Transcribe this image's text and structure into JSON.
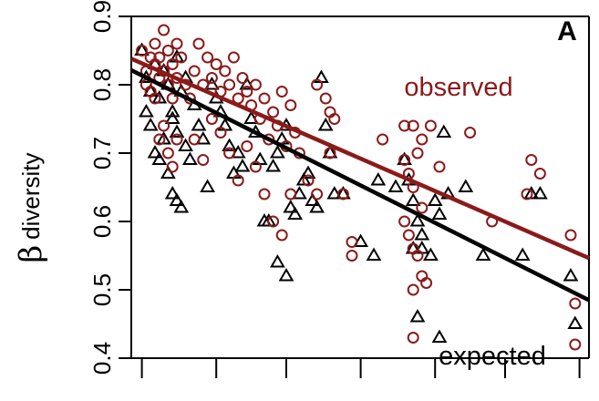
{
  "chart_data": {
    "type": "scatter",
    "title": "",
    "panel_label": "A",
    "ylabel_symbol": "β",
    "ylabel_text": "diversity",
    "xlabel": "",
    "ylim": [
      0.4,
      0.9
    ],
    "xlim": [
      0,
      100
    ],
    "y_ticks": [
      "0.4",
      "0.5",
      "0.6",
      "0.7",
      "0.8",
      "0.9"
    ],
    "y_tick_values": [
      0.4,
      0.5,
      0.6,
      0.7,
      0.8,
      0.9
    ],
    "x_tick_values": [
      2,
      19,
      35,
      52,
      69,
      85,
      102
    ],
    "grid": false,
    "colors": {
      "observed": "#8b1a1a",
      "expected": "#000000"
    },
    "series": [
      {
        "name": "observed",
        "marker": "circle",
        "color": "#8b1a1a",
        "fit_line": {
          "x": [
            0,
            100
          ],
          "y": [
            0.837,
            0.558
          ]
        },
        "points": [
          [
            2,
            0.85
          ],
          [
            3,
            0.82
          ],
          [
            4,
            0.84
          ],
          [
            4,
            0.79
          ],
          [
            5,
            0.83
          ],
          [
            5,
            0.86
          ],
          [
            6,
            0.81
          ],
          [
            6,
            0.84
          ],
          [
            7,
            0.88
          ],
          [
            7,
            0.82
          ],
          [
            8,
            0.85
          ],
          [
            8,
            0.8
          ],
          [
            9,
            0.83
          ],
          [
            9,
            0.78
          ],
          [
            10,
            0.86
          ],
          [
            10,
            0.81
          ],
          [
            11,
            0.84
          ],
          [
            3,
            0.8
          ],
          [
            5,
            0.78
          ],
          [
            6,
            0.72
          ],
          [
            7,
            0.74
          ],
          [
            8,
            0.7
          ],
          [
            9,
            0.68
          ],
          [
            10,
            0.72
          ],
          [
            12,
            0.8
          ],
          [
            13,
            0.78
          ],
          [
            14,
            0.82
          ],
          [
            15,
            0.86
          ],
          [
            16,
            0.8
          ],
          [
            17,
            0.84
          ],
          [
            18,
            0.81
          ],
          [
            19,
            0.83
          ],
          [
            20,
            0.79
          ],
          [
            21,
            0.82
          ],
          [
            22,
            0.8
          ],
          [
            23,
            0.84
          ],
          [
            24,
            0.78
          ],
          [
            25,
            0.81
          ],
          [
            26,
            0.79
          ],
          [
            27,
            0.77
          ],
          [
            28,
            0.8
          ],
          [
            29,
            0.75
          ],
          [
            30,
            0.78
          ],
          [
            31,
            0.72
          ],
          [
            32,
            0.76
          ],
          [
            33,
            0.74
          ],
          [
            34,
            0.79
          ],
          [
            35,
            0.71
          ],
          [
            36,
            0.77
          ],
          [
            37,
            0.73
          ],
          [
            14,
            0.72
          ],
          [
            16,
            0.69
          ],
          [
            18,
            0.75
          ],
          [
            20,
            0.73
          ],
          [
            22,
            0.7
          ],
          [
            24,
            0.66
          ],
          [
            26,
            0.71
          ],
          [
            28,
            0.68
          ],
          [
            30,
            0.64
          ],
          [
            32,
            0.6
          ],
          [
            34,
            0.58
          ],
          [
            36,
            0.64
          ],
          [
            38,
            0.7
          ],
          [
            40,
            0.66
          ],
          [
            42,
            0.64
          ],
          [
            45,
            0.7
          ],
          [
            48,
            0.64
          ],
          [
            50,
            0.57
          ],
          [
            50,
            0.55
          ],
          [
            57,
            0.72
          ],
          [
            62,
            0.74
          ],
          [
            64,
            0.74
          ],
          [
            66,
            0.72
          ],
          [
            62,
            0.69
          ],
          [
            63,
            0.67
          ],
          [
            64,
            0.65
          ],
          [
            65,
            0.7
          ],
          [
            66,
            0.62
          ],
          [
            62,
            0.6
          ],
          [
            63,
            0.58
          ],
          [
            64,
            0.56
          ],
          [
            65,
            0.55
          ],
          [
            64,
            0.5
          ],
          [
            66,
            0.52
          ],
          [
            67,
            0.51
          ],
          [
            64,
            0.43
          ],
          [
            68,
            0.74
          ],
          [
            70,
            0.68
          ],
          [
            77,
            0.73
          ],
          [
            82,
            0.6
          ],
          [
            91,
            0.69
          ],
          [
            93,
            0.67
          ],
          [
            90,
            0.64
          ],
          [
            100,
            0.58
          ],
          [
            101,
            0.48
          ],
          [
            101,
            0.42
          ],
          [
            42,
            0.8
          ],
          [
            44,
            0.78
          ],
          [
            45,
            0.76
          ],
          [
            46,
            0.75
          ]
        ]
      },
      {
        "name": "expected",
        "marker": "triangle",
        "color": "#000000",
        "fit_line": {
          "x": [
            0,
            101
          ],
          "y": [
            0.82,
            0.495
          ]
        },
        "points": [
          [
            2,
            0.85
          ],
          [
            3,
            0.81
          ],
          [
            4,
            0.79
          ],
          [
            5,
            0.83
          ],
          [
            6,
            0.78
          ],
          [
            7,
            0.82
          ],
          [
            8,
            0.8
          ],
          [
            9,
            0.76
          ],
          [
            10,
            0.84
          ],
          [
            11,
            0.79
          ],
          [
            12,
            0.81
          ],
          [
            3,
            0.76
          ],
          [
            4,
            0.74
          ],
          [
            5,
            0.7
          ],
          [
            6,
            0.69
          ],
          [
            7,
            0.72
          ],
          [
            8,
            0.67
          ],
          [
            9,
            0.64
          ],
          [
            10,
            0.63
          ],
          [
            11,
            0.62
          ],
          [
            9,
            0.75
          ],
          [
            10,
            0.73
          ],
          [
            12,
            0.71
          ],
          [
            13,
            0.69
          ],
          [
            14,
            0.77
          ],
          [
            15,
            0.74
          ],
          [
            16,
            0.72
          ],
          [
            17,
            0.65
          ],
          [
            18,
            0.8
          ],
          [
            19,
            0.78
          ],
          [
            20,
            0.76
          ],
          [
            21,
            0.74
          ],
          [
            22,
            0.71
          ],
          [
            23,
            0.67
          ],
          [
            24,
            0.7
          ],
          [
            25,
            0.68
          ],
          [
            26,
            0.8
          ],
          [
            27,
            0.75
          ],
          [
            28,
            0.73
          ],
          [
            29,
            0.69
          ],
          [
            30,
            0.6
          ],
          [
            31,
            0.6
          ],
          [
            32,
            0.68
          ],
          [
            33,
            0.7
          ],
          [
            34,
            0.72
          ],
          [
            35,
            0.74
          ],
          [
            33,
            0.54
          ],
          [
            35,
            0.52
          ],
          [
            36,
            0.62
          ],
          [
            37,
            0.61
          ],
          [
            38,
            0.64
          ],
          [
            39,
            0.66
          ],
          [
            40,
            0.67
          ],
          [
            41,
            0.63
          ],
          [
            42,
            0.62
          ],
          [
            43,
            0.81
          ],
          [
            44,
            0.74
          ],
          [
            45,
            0.7
          ],
          [
            46,
            0.64
          ],
          [
            48,
            0.64
          ],
          [
            52,
            0.57
          ],
          [
            55,
            0.55
          ],
          [
            56,
            0.66
          ],
          [
            60,
            0.65
          ],
          [
            62,
            0.69
          ],
          [
            63,
            0.66
          ],
          [
            64,
            0.63
          ],
          [
            65,
            0.6
          ],
          [
            66,
            0.58
          ],
          [
            64,
            0.56
          ],
          [
            66,
            0.56
          ],
          [
            68,
            0.55
          ],
          [
            69,
            0.63
          ],
          [
            70,
            0.61
          ],
          [
            71,
            0.73
          ],
          [
            72,
            0.64
          ],
          [
            65,
            0.46
          ],
          [
            70,
            0.43
          ],
          [
            76,
            0.65
          ],
          [
            80,
            0.55
          ],
          [
            89,
            0.55
          ],
          [
            91,
            0.64
          ],
          [
            93,
            0.64
          ],
          [
            100,
            0.52
          ],
          [
            101,
            0.45
          ]
        ]
      }
    ]
  }
}
